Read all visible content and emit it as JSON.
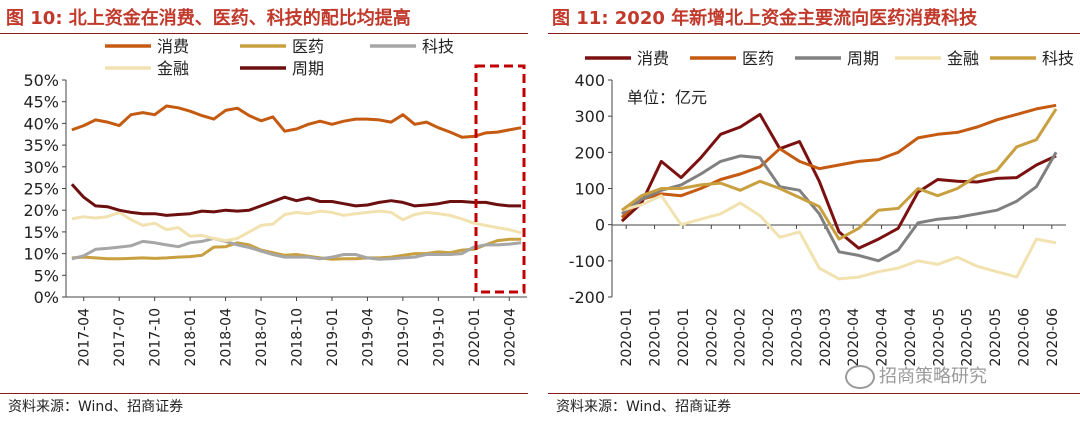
{
  "left": {
    "title": "图 10:  北上资金在消费、医药、科技的配比均提高",
    "source": "资料来源：Wind、招商证券"
  },
  "right": {
    "title": "图 11:  2020 年新增北上资金主要流向医药消费科技",
    "source": "资料来源：Wind、招商证券",
    "unit_label": "单位：亿元"
  },
  "watermark": "招商策略研究",
  "colors": {
    "title_red": "#c0392b",
    "rule": "#8b1a1a",
    "highlight_box": "#c00000"
  },
  "chart_data": [
    {
      "type": "line",
      "title": "",
      "x": [
        "2017-04",
        "2017-05",
        "2017-06",
        "2017-07",
        "2017-08",
        "2017-09",
        "2017-10",
        "2017-11",
        "2017-12",
        "2018-01",
        "2018-02",
        "2018-03",
        "2018-04",
        "2018-05",
        "2018-06",
        "2018-07",
        "2018-08",
        "2018-09",
        "2018-10",
        "2018-11",
        "2018-12",
        "2019-01",
        "2019-02",
        "2019-03",
        "2019-04",
        "2019-05",
        "2019-06",
        "2019-07",
        "2019-08",
        "2019-09",
        "2019-10",
        "2019-11",
        "2019-12",
        "2020-01",
        "2020-02",
        "2020-03",
        "2020-04",
        "2020-05",
        "2020-06"
      ],
      "xticks": [
        "2017-04",
        "2017-07",
        "2017-10",
        "2018-01",
        "2018-04",
        "2018-07",
        "2018-10",
        "2019-01",
        "2019-04",
        "2019-07",
        "2019-10",
        "2020-01",
        "2020-04"
      ],
      "ylim": [
        0,
        0.5
      ],
      "yticks": [
        "0%",
        "5%",
        "10%",
        "15%",
        "20%",
        "25%",
        "30%",
        "35%",
        "40%",
        "45%",
        "50%"
      ],
      "legend_position": "top",
      "grid": false,
      "series": [
        {
          "name": "消费",
          "color": "#c55a11",
          "values": [
            0.385,
            0.395,
            0.408,
            0.403,
            0.395,
            0.42,
            0.425,
            0.42,
            0.44,
            0.436,
            0.428,
            0.418,
            0.41,
            0.43,
            0.435,
            0.418,
            0.406,
            0.415,
            0.382,
            0.387,
            0.398,
            0.405,
            0.398,
            0.405,
            0.41,
            0.41,
            0.408,
            0.403,
            0.42,
            0.398,
            0.403,
            0.39,
            0.38,
            0.368,
            0.37,
            0.378,
            0.38,
            0.385,
            0.39
          ]
        },
        {
          "name": "医药",
          "color": "#c8a040",
          "values": [
            0.09,
            0.092,
            0.09,
            0.088,
            0.088,
            0.089,
            0.09,
            0.089,
            0.09,
            0.092,
            0.093,
            0.096,
            0.115,
            0.116,
            0.125,
            0.12,
            0.108,
            0.102,
            0.096,
            0.098,
            0.094,
            0.09,
            0.087,
            0.088,
            0.088,
            0.09,
            0.09,
            0.092,
            0.096,
            0.1,
            0.1,
            0.104,
            0.102,
            0.108,
            0.11,
            0.12,
            0.13,
            0.133,
            0.133
          ]
        },
        {
          "name": "科技",
          "color": "#a6a6a6",
          "values": [
            0.088,
            0.095,
            0.11,
            0.112,
            0.115,
            0.118,
            0.128,
            0.125,
            0.12,
            0.116,
            0.125,
            0.128,
            0.135,
            0.128,
            0.12,
            0.114,
            0.106,
            0.098,
            0.092,
            0.092,
            0.092,
            0.088,
            0.092,
            0.098,
            0.098,
            0.09,
            0.087,
            0.088,
            0.09,
            0.092,
            0.098,
            0.098,
            0.098,
            0.1,
            0.115,
            0.12,
            0.12,
            0.122,
            0.125
          ]
        },
        {
          "name": "金融",
          "color": "#f1e2b0",
          "values": [
            0.18,
            0.185,
            0.182,
            0.185,
            0.195,
            0.178,
            0.165,
            0.17,
            0.155,
            0.16,
            0.14,
            0.142,
            0.135,
            0.13,
            0.135,
            0.15,
            0.165,
            0.168,
            0.19,
            0.195,
            0.192,
            0.198,
            0.195,
            0.188,
            0.192,
            0.195,
            0.198,
            0.195,
            0.178,
            0.19,
            0.195,
            0.192,
            0.188,
            0.18,
            0.17,
            0.165,
            0.16,
            0.155,
            0.148
          ]
        },
        {
          "name": "周期",
          "color": "#6b0f0f",
          "values": [
            0.26,
            0.23,
            0.21,
            0.208,
            0.2,
            0.195,
            0.192,
            0.192,
            0.188,
            0.19,
            0.192,
            0.198,
            0.196,
            0.2,
            0.198,
            0.2,
            0.21,
            0.22,
            0.23,
            0.222,
            0.228,
            0.22,
            0.22,
            0.215,
            0.21,
            0.212,
            0.218,
            0.222,
            0.218,
            0.21,
            0.212,
            0.215,
            0.22,
            0.22,
            0.218,
            0.218,
            0.213,
            0.21,
            0.21
          ]
        }
      ]
    },
    {
      "type": "line",
      "title": "",
      "x": [
        "2020-01-a",
        "2020-01-b",
        "2020-01-c",
        "2020-01-d",
        "2020-02-a",
        "2020-02-b",
        "2020-02-c",
        "2020-02-d",
        "2020-03-a",
        "2020-03-b",
        "2020-03-c",
        "2020-03-d",
        "2020-04-a",
        "2020-04-b",
        "2020-04-c",
        "2020-04-d",
        "2020-05-a",
        "2020-05-b",
        "2020-05-c",
        "2020-05-d",
        "2020-06-a",
        "2020-06-b",
        "2020-06-c"
      ],
      "xticks": [
        "2020-01",
        "2020-01",
        "2020-01",
        "2020-02",
        "2020-02",
        "2020-02",
        "2020-03",
        "2020-03",
        "2020-04",
        "2020-04",
        "2020-04",
        "2020-05",
        "2020-05",
        "2020-05",
        "2020-06",
        "2020-06"
      ],
      "ylim": [
        -200,
        400
      ],
      "yticks": [
        "-200",
        "-100",
        "0",
        "100",
        "200",
        "300",
        "400"
      ],
      "legend_position": "top",
      "grid": false,
      "series": [
        {
          "name": "消费",
          "color": "#7b1010",
          "values": [
            10,
            60,
            175,
            130,
            185,
            250,
            270,
            305,
            210,
            230,
            120,
            -20,
            -65,
            -40,
            -10,
            90,
            125,
            120,
            118,
            128,
            130,
            165,
            190
          ]
        },
        {
          "name": "医药",
          "color": "#c55a11",
          "values": [
            20,
            70,
            85,
            80,
            100,
            125,
            140,
            160,
            210,
            175,
            155,
            165,
            175,
            180,
            200,
            240,
            250,
            255,
            270,
            290,
            305,
            320,
            330
          ]
        },
        {
          "name": "周期",
          "color": "#808080",
          "values": [
            30,
            70,
            95,
            110,
            140,
            175,
            190,
            185,
            105,
            95,
            30,
            -75,
            -85,
            -100,
            -70,
            5,
            15,
            20,
            30,
            40,
            65,
            105,
            200
          ]
        },
        {
          "name": "金融",
          "color": "#f1e2b0",
          "values": [
            40,
            55,
            80,
            0,
            15,
            30,
            60,
            25,
            -35,
            -20,
            -120,
            -150,
            -145,
            -130,
            -120,
            -100,
            -110,
            -90,
            -115,
            -130,
            -145,
            -40,
            -50
          ]
        },
        {
          "name": "科技",
          "color": "#c8a040",
          "values": [
            40,
            80,
            100,
            100,
            110,
            115,
            95,
            120,
            100,
            75,
            50,
            -40,
            -10,
            40,
            45,
            100,
            80,
            100,
            135,
            150,
            215,
            235,
            320
          ]
        }
      ]
    }
  ]
}
